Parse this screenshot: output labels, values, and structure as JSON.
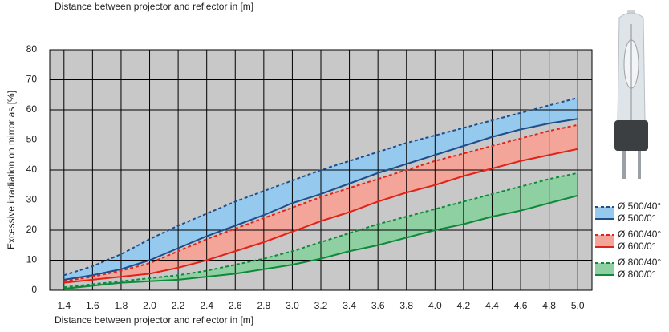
{
  "chart_data": {
    "type": "line",
    "top_label": "Distance between projector and reflector in [m]",
    "x_label": "Distance between projector and reflector in [m]",
    "y_label": "Excessive irradiation on mirror as [%]",
    "x": [
      1.4,
      1.6,
      1.8,
      2.0,
      2.2,
      2.4,
      2.6,
      2.8,
      3.0,
      3.2,
      3.4,
      3.6,
      3.8,
      4.0,
      4.2,
      4.4,
      4.6,
      4.8,
      5.0
    ],
    "xlim": [
      1.3,
      5.1
    ],
    "xticks": [
      {
        "value": 1.4,
        "label": "1.4"
      },
      {
        "value": 1.6,
        "label": "1.6"
      },
      {
        "value": 1.8,
        "label": "1.8"
      },
      {
        "value": 2.0,
        "label": "2.0"
      },
      {
        "value": 2.2,
        "label": "2.2"
      },
      {
        "value": 2.4,
        "label": "2.4"
      },
      {
        "value": 2.6,
        "label": "2.6"
      },
      {
        "value": 2.8,
        "label": "2.8"
      },
      {
        "value": 3.0,
        "label": "3.0"
      },
      {
        "value": 3.2,
        "label": "3.2"
      },
      {
        "value": 3.4,
        "label": "3.4"
      },
      {
        "value": 3.6,
        "label": "3.6"
      },
      {
        "value": 3.8,
        "label": "3.8"
      },
      {
        "value": 4.0,
        "label": "4.0"
      },
      {
        "value": 4.2,
        "label": "4.2"
      },
      {
        "value": 4.4,
        "label": "4.4"
      },
      {
        "value": 4.6,
        "label": "4.6"
      },
      {
        "value": 4.8,
        "label": "4.8"
      },
      {
        "value": 5.0,
        "label": "5.0"
      }
    ],
    "ylim": [
      0,
      80
    ],
    "yticks": [
      0,
      10,
      20,
      30,
      40,
      50,
      60,
      70,
      80
    ],
    "grid": true,
    "series": [
      {
        "name": "Ø 500/40°",
        "color": "#1f4e8c",
        "dashed": true,
        "band_fill": "#95c9ee",
        "values": [
          5,
          8,
          12,
          17,
          21.5,
          25.5,
          29.5,
          33,
          36.5,
          40,
          43,
          46,
          49,
          51.5,
          54,
          56.5,
          59,
          61.5,
          64
        ]
      },
      {
        "name": "Ø 500/0°",
        "color": "#1f4e8c",
        "dashed": false,
        "values": [
          3.5,
          5,
          7,
          10,
          14,
          18,
          21.5,
          25,
          29,
          32,
          35.5,
          39,
          42,
          45,
          48,
          51,
          53.5,
          55.5,
          57
        ]
      },
      {
        "name": "Ø 600/40°",
        "color": "#e2231a",
        "dashed": true,
        "band_fill": "#f4a59a",
        "values": [
          3,
          4.5,
          6.5,
          9,
          13,
          17,
          20.5,
          24,
          27.5,
          31,
          34,
          37,
          40,
          43,
          45.5,
          48,
          50.5,
          53,
          55
        ]
      },
      {
        "name": "Ø 600/0°",
        "color": "#e2231a",
        "dashed": false,
        "values": [
          2.5,
          3.5,
          4.5,
          5.5,
          7.5,
          10,
          13,
          16,
          19.5,
          23,
          26,
          29.5,
          32.5,
          35,
          38,
          40.5,
          43,
          45,
          47
        ]
      },
      {
        "name": "Ø 800/40°",
        "color": "#0e8a3a",
        "dashed": true,
        "band_fill": "#8fd0a2",
        "values": [
          1,
          2,
          3,
          4,
          5,
          6.5,
          8.5,
          10.5,
          13,
          16,
          19,
          22,
          24.5,
          27,
          29.5,
          32,
          34.5,
          37,
          39
        ]
      },
      {
        "name": "Ø 800/0°",
        "color": "#0e8a3a",
        "dashed": false,
        "values": [
          0.5,
          1.5,
          2.5,
          3,
          3.5,
          4.5,
          5.5,
          7,
          8.5,
          10.5,
          13,
          15,
          17.5,
          20,
          22,
          24.5,
          26.5,
          29,
          31.5
        ]
      }
    ]
  }
}
